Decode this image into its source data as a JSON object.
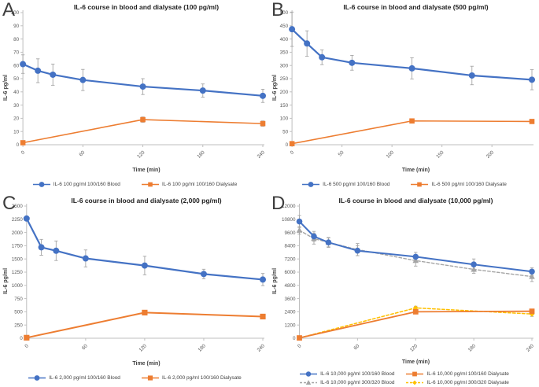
{
  "figure": {
    "background": "#ffffff",
    "error_bar_color": "#A6A6A6",
    "axis_color": "#BFBFBF",
    "tick_label_color": "#595959",
    "accent_colors": {
      "blood_blue": "#4472C4",
      "dialysate_orange": "#ED7D31",
      "blood_gray": "#A5A5A5",
      "dialysate_yellow": "#FFC000"
    }
  },
  "chart_data": [
    {
      "panel_label": "A",
      "type": "line",
      "title": "IL-6 course in blood and dialysate (100 pg/ml)",
      "xlabel": "Time (min)",
      "ylabel": "IL-6 pg/ml",
      "grid": false,
      "legend_position": "bottom",
      "xlim": [
        0,
        240
      ],
      "xticks": [
        0,
        60,
        120,
        180,
        240
      ],
      "ylim": [
        0,
        100
      ],
      "ystep": 10,
      "series": [
        {
          "name": "IL-6 100 pg/ml 100/160 Blood",
          "color": "#4472C4",
          "marker": "circle",
          "dash": false,
          "z": 2,
          "lw": 2.2,
          "ms": 4,
          "x": [
            0,
            15,
            30,
            60,
            120,
            180,
            240
          ],
          "y": [
            61,
            56,
            53,
            49,
            44,
            41,
            37
          ],
          "yerr": [
            7,
            9,
            8,
            8,
            6,
            5,
            5
          ]
        },
        {
          "name": "IL-6 100 pg/ml 100/160 Dialysate",
          "color": "#ED7D31",
          "marker": "square",
          "dash": false,
          "z": 1,
          "lw": 1.6,
          "ms": 3.3,
          "x": [
            0,
            120,
            240
          ],
          "y": [
            1.5,
            19,
            16
          ],
          "yerr": [
            1,
            2,
            2
          ]
        }
      ]
    },
    {
      "panel_label": "B",
      "type": "line",
      "title": "IL-6 course in blood and dialysate (500 pg/ml)",
      "xlabel": "Time (min)",
      "ylabel": "IL-6 pg/ml",
      "grid": false,
      "legend_position": "bottom",
      "xlim": [
        0,
        240
      ],
      "xticks": [
        0,
        50,
        100,
        150,
        200
      ],
      "ylim": [
        0,
        500
      ],
      "ystep": 50,
      "series": [
        {
          "name": "IL-6 500 pg/ml 100/160 Blood",
          "color": "#4472C4",
          "marker": "circle",
          "dash": false,
          "z": 2,
          "lw": 2.2,
          "ms": 4,
          "x": [
            0,
            15,
            30,
            60,
            120,
            180,
            240
          ],
          "y": [
            437,
            383,
            331,
            310,
            289,
            262,
            246
          ],
          "yerr": [
            65,
            48,
            28,
            28,
            40,
            35,
            38
          ]
        },
        {
          "name": "IL-6 500 pg/ml 100/160 Dialysate",
          "color": "#ED7D31",
          "marker": "square",
          "dash": false,
          "z": 1,
          "lw": 1.6,
          "ms": 3.3,
          "x": [
            0,
            120,
            240
          ],
          "y": [
            4,
            90,
            88
          ],
          "yerr": [
            3,
            6,
            6
          ]
        }
      ]
    },
    {
      "panel_label": "C",
      "type": "line",
      "title": "IL-6 course in blood and dialysate (2,000 pg/ml)",
      "xlabel": "Time (min)",
      "ylabel": "IL-6 pg/ml",
      "grid": false,
      "legend_position": "bottom",
      "xlim": [
        0,
        240
      ],
      "xticks": [
        0,
        60,
        120,
        180,
        240
      ],
      "ylim": [
        0,
        2500
      ],
      "ystep": 250,
      "series": [
        {
          "name": "IL-6 2,000 pg/ml 100/160 Blood",
          "color": "#4472C4",
          "marker": "circle",
          "dash": false,
          "z": 2,
          "lw": 2.2,
          "ms": 4,
          "x": [
            0,
            15,
            30,
            60,
            120,
            180,
            240
          ],
          "y": [
            2265,
            1720,
            1655,
            1510,
            1375,
            1215,
            1110
          ],
          "yerr": [
            40,
            150,
            185,
            160,
            175,
            90,
            115
          ]
        },
        {
          "name": "IL-6 2,000 pg/ml 100/160 Dialysate",
          "color": "#ED7D31",
          "marker": "square",
          "dash": false,
          "z": 1,
          "lw": 2,
          "ms": 3.6,
          "x": [
            0,
            120,
            240
          ],
          "y": [
            10,
            485,
            410
          ],
          "yerr": [
            10,
            35,
            30
          ]
        }
      ]
    },
    {
      "panel_label": "D",
      "type": "line",
      "title": "IL-6 course in blood and dialysate (10,000 pg/ml)",
      "xlabel": "Time (min)",
      "ylabel": "IL-6 pg/ml",
      "grid": false,
      "legend_position": "bottom-two-rows",
      "xlim": [
        0,
        240
      ],
      "xticks": [
        0,
        60,
        120,
        180,
        240
      ],
      "ylim": [
        0,
        12000
      ],
      "ystep": 1200,
      "series": [
        {
          "name": "IL-6 10,000 pg/ml 100/160 Blood",
          "color": "#4472C4",
          "marker": "circle",
          "dash": false,
          "z": 4,
          "lw": 2,
          "ms": 3.8,
          "x": [
            0,
            15,
            30,
            60,
            120,
            180,
            240
          ],
          "y": [
            10600,
            9250,
            8700,
            7950,
            7400,
            6700,
            6050
          ],
          "yerr": [
            550,
            450,
            400,
            450,
            400,
            500,
            350
          ]
        },
        {
          "name": "IL-6 10,000 pg/ml 100/160 Dialysate",
          "color": "#ED7D31",
          "marker": "square",
          "dash": false,
          "z": 3,
          "lw": 1.8,
          "ms": 3.4,
          "x": [
            0,
            120,
            240
          ],
          "y": [
            30,
            2400,
            2450
          ],
          "yerr": [
            40,
            130,
            130
          ]
        },
        {
          "name": "IL-6 10,000 pg/ml 300/320 Blood",
          "color": "#A5A5A5",
          "marker": "triangle",
          "dash": true,
          "z": 1,
          "lw": 1.4,
          "ms": 4,
          "x": [
            0,
            15,
            30,
            60,
            120,
            180,
            240
          ],
          "y": [
            9800,
            9050,
            8700,
            8050,
            7050,
            6250,
            5600
          ],
          "yerr": [
            350,
            500,
            450,
            550,
            500,
            350,
            450
          ]
        },
        {
          "name": "IL-6 10,000 pg/ml 300/320 Dialysate",
          "color": "#FFC000",
          "marker": "diamond",
          "dash": true,
          "z": 2,
          "lw": 1.5,
          "ms": 3.4,
          "x": [
            0,
            120,
            240
          ],
          "y": [
            30,
            2750,
            2200
          ],
          "yerr": [
            40,
            160,
            220
          ]
        }
      ]
    }
  ]
}
